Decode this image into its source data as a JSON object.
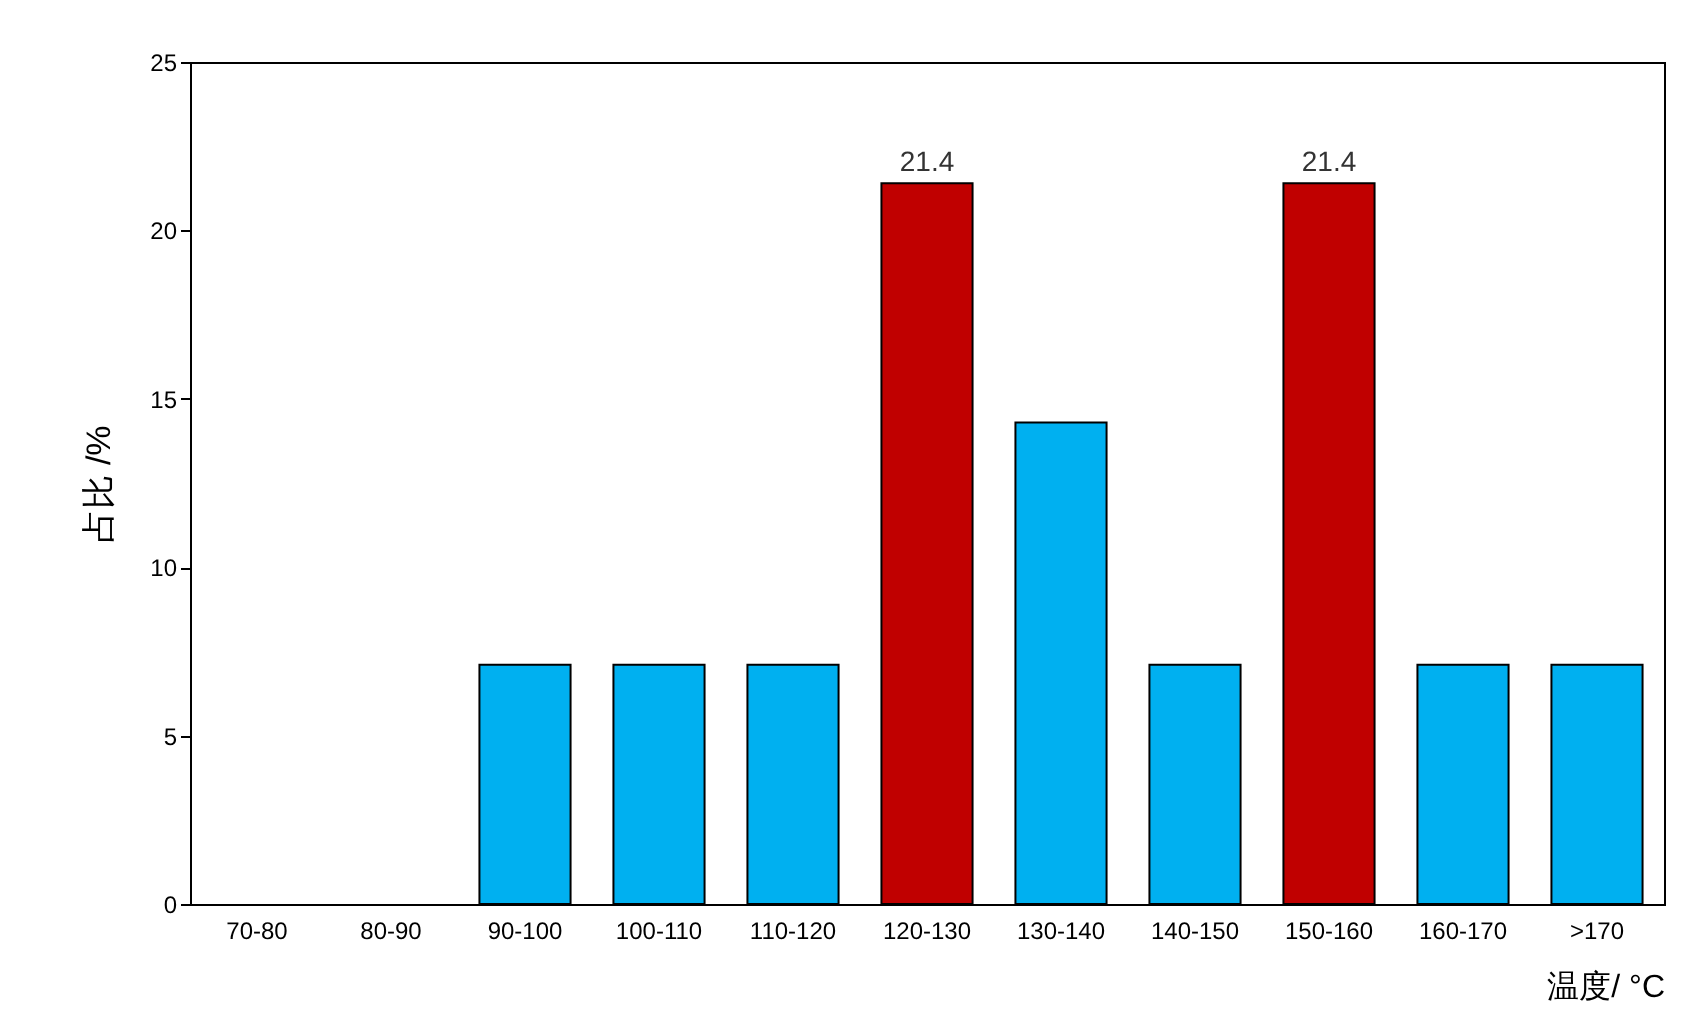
{
  "chart_data": {
    "type": "bar",
    "xlabel": "温度/ °C",
    "ylabel": "占比 /%",
    "categories": [
      "70-80",
      "80-90",
      "90-100",
      "100-110",
      "110-120",
      "120-130",
      "130-140",
      "140-150",
      "150-160",
      "160-170",
      ">170"
    ],
    "values": [
      0,
      0,
      7.1,
      7.1,
      7.1,
      21.4,
      14.3,
      7.1,
      21.4,
      7.1,
      7.1
    ],
    "colors": [
      "#00b0f0",
      "#00b0f0",
      "#00b0f0",
      "#00b0f0",
      "#00b0f0",
      "#c00000",
      "#00b0f0",
      "#00b0f0",
      "#c00000",
      "#00b0f0",
      "#00b0f0"
    ],
    "value_labels": [
      null,
      null,
      null,
      null,
      null,
      "21.4",
      null,
      null,
      "21.4",
      null,
      null
    ],
    "ylim": [
      0,
      25
    ],
    "yticks": [
      0,
      5,
      10,
      15,
      20,
      25
    ]
  }
}
